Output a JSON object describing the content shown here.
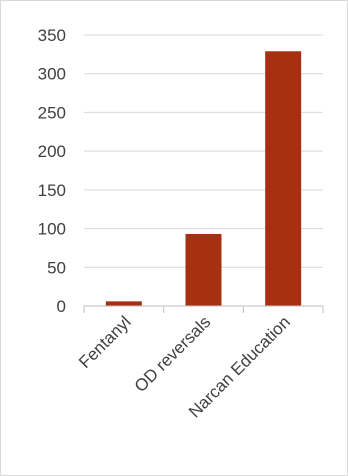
{
  "chart_data": {
    "type": "bar",
    "categories": [
      "Fentanyl",
      "OD reversals",
      "Narcan Education"
    ],
    "values": [
      6,
      93,
      329
    ],
    "ylim": [
      0,
      350
    ],
    "yticks": [
      0,
      50,
      100,
      150,
      200,
      250,
      300,
      350
    ],
    "grid": true,
    "legend": "none",
    "bar_color": "#a63011",
    "gridline_color": "#d9d9d9",
    "axis_color": "#bfbfbf",
    "text_color": "#404040"
  }
}
